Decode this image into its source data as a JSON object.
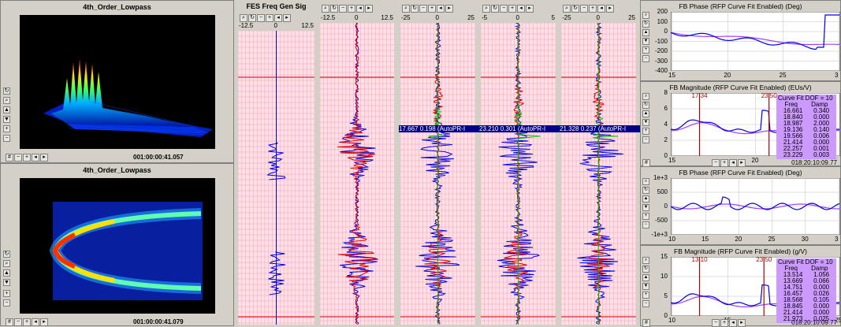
{
  "left_top": {
    "title": "4th_Order_Lowpass",
    "timestamp": "001:00:00:41.057"
  },
  "left_bottom": {
    "title": "4th_Order_Lowpass",
    "timestamp": "001:00:00:41.079"
  },
  "fes": {
    "title": "FES Freq Gen Sig",
    "xmin": "-12.5",
    "xmid": "0",
    "xmax": "12.5"
  },
  "strips": [
    {
      "xmin": "-12.5",
      "xmid": "0",
      "xmax": "12.5",
      "label": ""
    },
    {
      "xmin": "-25",
      "xmid": "0",
      "xmax": "25",
      "label": "17.667  0.198 (AutoPR-I"
    },
    {
      "xmin": "-5",
      "xmid": "0",
      "xmax": "5",
      "label": "23.210  0.301 (AutoPR-I"
    },
    {
      "xmin": "-25",
      "xmid": "0",
      "xmax": "25",
      "label": "21.328  0.237 (AutoPR-I"
    }
  ],
  "right": {
    "phase1": {
      "title": "FB Phase (RFP Curve Fit Enabled)  (Deg)",
      "yticks": [
        "200",
        "100",
        "0",
        "-100",
        "-200",
        "-300",
        "-400"
      ],
      "xticks": [
        "15",
        "20",
        "25",
        "3"
      ]
    },
    "mag1": {
      "title": "FB Magnitude (RFP Curve Fit Enabled)  (EUs/V)",
      "yticks": [
        "8",
        "6",
        "4",
        "2",
        "0"
      ],
      "xticks": [
        "15",
        "20"
      ],
      "markers": [
        "17.34",
        "23.50"
      ],
      "fit_header": "Curve Fit DOF = 10",
      "fit_cols": [
        "Freq",
        "Damp"
      ],
      "fit_rows": [
        [
          "16.661",
          "0.340"
        ],
        [
          "18.840",
          "0.000"
        ],
        [
          "18.987",
          "2.000"
        ],
        [
          "19.136",
          "0.140"
        ],
        [
          "19.566",
          "0.006"
        ],
        [
          "21.414",
          "0.000"
        ],
        [
          "22.257",
          "0.001"
        ],
        [
          "23.229",
          "0.003"
        ]
      ],
      "timestamp": "018:20:10:09.77"
    },
    "phase2": {
      "title": "FB Phase (RFP Curve Fit Enabled)  (Deg)",
      "yticks": [
        "1e+3",
        "500",
        "0",
        "-500",
        "-1e+3"
      ],
      "xticks": [
        "10",
        "15",
        "20",
        "25",
        "30",
        "3"
      ]
    },
    "mag2": {
      "title": "FB Magnitude (RFP Curve Fit Enabled)  (g/V)",
      "yticks": [
        "15",
        "10",
        "5",
        "0"
      ],
      "xticks": [
        "10",
        "15",
        "20",
        "25"
      ],
      "markers": [
        "13.10",
        "23.50"
      ],
      "fit_header": "Curve Fit DOF = 10",
      "fit_cols": [
        "Freq",
        "Damp"
      ],
      "fit_rows": [
        [
          "13.514",
          "1.056"
        ],
        [
          "13.669",
          "0.066"
        ],
        [
          "14.751",
          "0.000"
        ],
        [
          "16.457",
          "0.026"
        ],
        [
          "18.568",
          "0.105"
        ],
        [
          "18.845",
          "0.000"
        ],
        [
          "21.414",
          "0.000"
        ],
        [
          "21.973",
          "0.025"
        ]
      ],
      "timestamp": "018:20:10:09.77"
    }
  },
  "colors": {
    "grid_bg": "#ffe0e8",
    "grid_line": "#f4a0b0",
    "red_line": "#d00000",
    "blue": "#0000e0",
    "red": "#e00000",
    "green": "#00c000",
    "fit_bg": "#cc99ff"
  },
  "icons": [
    "zoom-icon",
    "pan-icon",
    "rotate-icon",
    "up-icon",
    "down-icon",
    "plus-icon",
    "minus-icon",
    "left-icon",
    "right-icon"
  ]
}
